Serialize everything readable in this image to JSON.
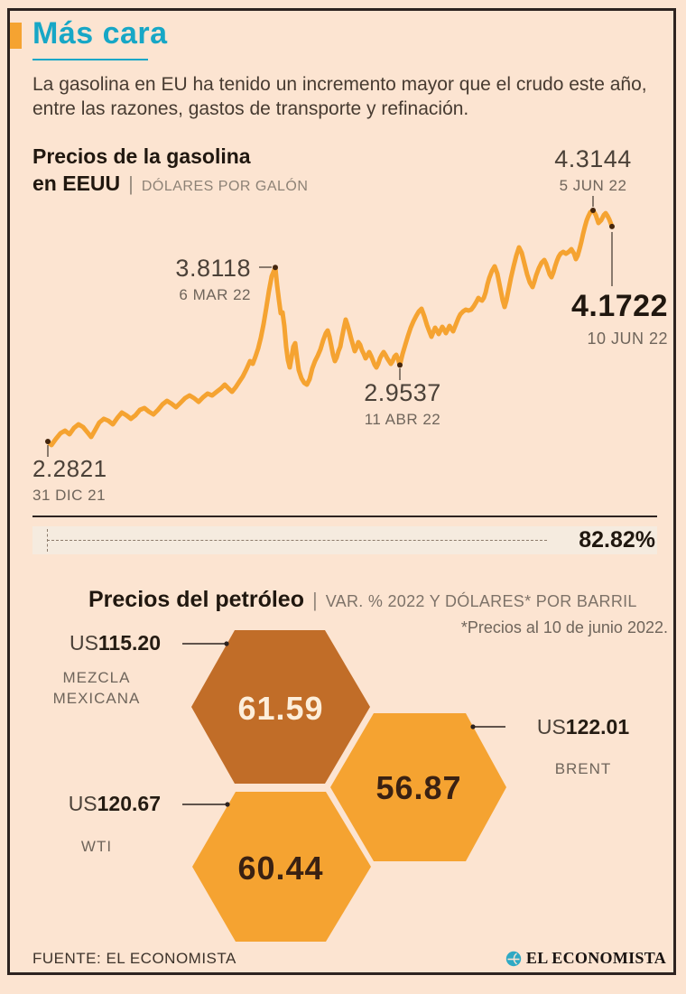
{
  "colors": {
    "background": "#fce4d1",
    "frame": "#2d2320",
    "accent_teal": "#17a7c6",
    "accent_orange": "#f5a331",
    "hex_dark": "#c16d28",
    "hex_light": "#f5a331",
    "text_dark": "#20170f",
    "text_gray": "#6f655b"
  },
  "header": {
    "title": "Más cara",
    "intro": "La gasolina en EU ha tenido un incremento mayor que el crudo este año, entre las razones, gastos de transporte y refinación."
  },
  "gasoline": {
    "title_line1": "Precios de la gasolina",
    "title_line2": "en EEUU",
    "sep": "|",
    "units": "DÓLARES POR GALÓN"
  },
  "chart_data": [
    {
      "type": "line",
      "title": "Precios de la gasolina en EEUU",
      "ylabel": "Dólares por galón",
      "ylim": [
        2.2821,
        4.3144
      ],
      "x_range": [
        "31 DIC 21",
        "10 JUN 22"
      ],
      "grid": false,
      "legend": "none",
      "line_color": "#f5a331",
      "total_change_pct": "82.82%",
      "key_points": [
        {
          "label": "2.2821",
          "date": "31 DIC 21",
          "t": 0.0,
          "value": 2.2821
        },
        {
          "label": "3.8118",
          "date": "6 MAR 22",
          "t": 0.4032,
          "value": 3.8118
        },
        {
          "label": "2.9537",
          "date": "11 ABR 22",
          "t": 0.624,
          "value": 2.9537
        },
        {
          "label": "4.3144",
          "date": "5 JUN 22",
          "t": 0.9664,
          "value": 4.3144
        },
        {
          "label": "4.1722",
          "date": "10 JUN 22",
          "t": 1.0,
          "value": 4.1722
        }
      ],
      "series": [
        {
          "name": "Precio gasolina EU (dólares por galón)",
          "points": [
            [
              0,
              2.2821
            ],
            [
              0.0064,
              2.25
            ],
            [
              0.0144,
              2.306
            ],
            [
              0.0224,
              2.354
            ],
            [
              0.0304,
              2.377
            ],
            [
              0.0384,
              2.346
            ],
            [
              0.0464,
              2.401
            ],
            [
              0.0544,
              2.433
            ],
            [
              0.0624,
              2.409
            ],
            [
              0.0704,
              2.361
            ],
            [
              0.0768,
              2.322
            ],
            [
              0.0832,
              2.377
            ],
            [
              0.0912,
              2.449
            ],
            [
              0.0992,
              2.481
            ],
            [
              0.1072,
              2.465
            ],
            [
              0.1152,
              2.433
            ],
            [
              0.1232,
              2.489
            ],
            [
              0.1312,
              2.536
            ],
            [
              0.1392,
              2.512
            ],
            [
              0.1472,
              2.481
            ],
            [
              0.1552,
              2.512
            ],
            [
              0.1632,
              2.56
            ],
            [
              0.1712,
              2.576
            ],
            [
              0.1792,
              2.544
            ],
            [
              0.1872,
              2.52
            ],
            [
              0.1952,
              2.56
            ],
            [
              0.2032,
              2.608
            ],
            [
              0.2112,
              2.639
            ],
            [
              0.2192,
              2.615
            ],
            [
              0.2272,
              2.584
            ],
            [
              0.2352,
              2.623
            ],
            [
              0.2432,
              2.663
            ],
            [
              0.2512,
              2.687
            ],
            [
              0.2592,
              2.663
            ],
            [
              0.2672,
              2.631
            ],
            [
              0.2752,
              2.671
            ],
            [
              0.2832,
              2.703
            ],
            [
              0.2912,
              2.687
            ],
            [
              0.2992,
              2.719
            ],
            [
              0.3072,
              2.75
            ],
            [
              0.3136,
              2.782
            ],
            [
              0.32,
              2.75
            ],
            [
              0.3264,
              2.719
            ],
            [
              0.3328,
              2.758
            ],
            [
              0.3392,
              2.806
            ],
            [
              0.3456,
              2.854
            ],
            [
              0.352,
              2.917
            ],
            [
              0.3584,
              2.989
            ],
            [
              0.3632,
              2.965
            ],
            [
              0.368,
              3.028
            ],
            [
              0.3728,
              3.1
            ],
            [
              0.3776,
              3.195
            ],
            [
              0.3824,
              3.314
            ],
            [
              0.3872,
              3.457
            ],
            [
              0.392,
              3.608
            ],
            [
              0.3968,
              3.735
            ],
            [
              0.4032,
              3.8118
            ],
            [
              0.4064,
              3.655
            ],
            [
              0.4096,
              3.528
            ],
            [
              0.4128,
              3.409
            ],
            [
              0.416,
              3.417
            ],
            [
              0.4192,
              3.298
            ],
            [
              0.4224,
              3.116
            ],
            [
              0.4256,
              2.997
            ],
            [
              0.4288,
              2.933
            ],
            [
              0.432,
              3.02
            ],
            [
              0.4352,
              3.116
            ],
            [
              0.4384,
              3.147
            ],
            [
              0.4416,
              3.02
            ],
            [
              0.4448,
              2.909
            ],
            [
              0.4496,
              2.838
            ],
            [
              0.4544,
              2.798
            ],
            [
              0.4592,
              2.782
            ],
            [
              0.464,
              2.83
            ],
            [
              0.4688,
              2.925
            ],
            [
              0.4736,
              2.989
            ],
            [
              0.4784,
              3.036
            ],
            [
              0.4832,
              3.092
            ],
            [
              0.488,
              3.171
            ],
            [
              0.4928,
              3.235
            ],
            [
              0.496,
              3.258
            ],
            [
              0.4992,
              3.203
            ],
            [
              0.5024,
              3.124
            ],
            [
              0.5056,
              3.044
            ],
            [
              0.5088,
              2.989
            ],
            [
              0.512,
              3.02
            ],
            [
              0.5152,
              3.076
            ],
            [
              0.5184,
              3.116
            ],
            [
              0.5216,
              3.203
            ],
            [
              0.5248,
              3.282
            ],
            [
              0.528,
              3.354
            ],
            [
              0.5312,
              3.306
            ],
            [
              0.5344,
              3.251
            ],
            [
              0.5376,
              3.187
            ],
            [
              0.5408,
              3.132
            ],
            [
              0.544,
              3.076
            ],
            [
              0.5472,
              3.108
            ],
            [
              0.5504,
              3.155
            ],
            [
              0.5536,
              3.132
            ],
            [
              0.5568,
              3.084
            ],
            [
              0.56,
              3.052
            ],
            [
              0.5632,
              3.013
            ],
            [
              0.5664,
              3.036
            ],
            [
              0.5696,
              3.068
            ],
            [
              0.5728,
              3.036
            ],
            [
              0.576,
              2.997
            ],
            [
              0.5792,
              2.957
            ],
            [
              0.5824,
              2.933
            ],
            [
              0.5856,
              2.965
            ],
            [
              0.5888,
              3.013
            ],
            [
              0.592,
              3.044
            ],
            [
              0.5952,
              3.068
            ],
            [
              0.5984,
              3.044
            ],
            [
              0.6016,
              3.013
            ],
            [
              0.6048,
              2.989
            ],
            [
              0.608,
              2.965
            ],
            [
              0.6112,
              2.989
            ],
            [
              0.6144,
              3.028
            ],
            [
              0.6176,
              3.044
            ],
            [
              0.6208,
              3.005
            ],
            [
              0.624,
              2.9537
            ],
            [
              0.6288,
              3.052
            ],
            [
              0.6336,
              3.132
            ],
            [
              0.6384,
              3.211
            ],
            [
              0.6432,
              3.282
            ],
            [
              0.648,
              3.338
            ],
            [
              0.6528,
              3.385
            ],
            [
              0.6576,
              3.425
            ],
            [
              0.6624,
              3.449
            ],
            [
              0.6672,
              3.385
            ],
            [
              0.672,
              3.306
            ],
            [
              0.6768,
              3.243
            ],
            [
              0.68,
              3.203
            ],
            [
              0.6832,
              3.243
            ],
            [
              0.6864,
              3.282
            ],
            [
              0.6896,
              3.258
            ],
            [
              0.6928,
              3.227
            ],
            [
              0.696,
              3.258
            ],
            [
              0.6992,
              3.29
            ],
            [
              0.7024,
              3.266
            ],
            [
              0.7056,
              3.235
            ],
            [
              0.7088,
              3.266
            ],
            [
              0.712,
              3.298
            ],
            [
              0.7152,
              3.274
            ],
            [
              0.7184,
              3.251
            ],
            [
              0.7216,
              3.29
            ],
            [
              0.7248,
              3.33
            ],
            [
              0.728,
              3.37
            ],
            [
              0.7312,
              3.401
            ],
            [
              0.736,
              3.425
            ],
            [
              0.7408,
              3.441
            ],
            [
              0.7456,
              3.433
            ],
            [
              0.7504,
              3.441
            ],
            [
              0.7552,
              3.473
            ],
            [
              0.76,
              3.513
            ],
            [
              0.7632,
              3.544
            ],
            [
              0.7664,
              3.529
            ],
            [
              0.7696,
              3.521
            ],
            [
              0.7728,
              3.544
            ],
            [
              0.776,
              3.592
            ],
            [
              0.7792,
              3.663
            ],
            [
              0.7824,
              3.719
            ],
            [
              0.7872,
              3.782
            ],
            [
              0.792,
              3.822
            ],
            [
              0.7968,
              3.758
            ],
            [
              0.8016,
              3.639
            ],
            [
              0.8064,
              3.52
            ],
            [
              0.8096,
              3.465
            ],
            [
              0.8128,
              3.52
            ],
            [
              0.816,
              3.6
            ],
            [
              0.8208,
              3.719
            ],
            [
              0.8256,
              3.822
            ],
            [
              0.8304,
              3.917
            ],
            [
              0.8352,
              3.989
            ],
            [
              0.84,
              3.941
            ],
            [
              0.8448,
              3.846
            ],
            [
              0.8496,
              3.751
            ],
            [
              0.8544,
              3.679
            ],
            [
              0.8592,
              3.64
            ],
            [
              0.8624,
              3.687
            ],
            [
              0.8656,
              3.743
            ],
            [
              0.8704,
              3.806
            ],
            [
              0.8752,
              3.854
            ],
            [
              0.88,
              3.878
            ],
            [
              0.8832,
              3.846
            ],
            [
              0.8864,
              3.798
            ],
            [
              0.8896,
              3.751
            ],
            [
              0.8928,
              3.727
            ],
            [
              0.896,
              3.767
            ],
            [
              0.8992,
              3.822
            ],
            [
              0.9024,
              3.87
            ],
            [
              0.9056,
              3.909
            ],
            [
              0.9088,
              3.933
            ],
            [
              0.9136,
              3.949
            ],
            [
              0.9184,
              3.933
            ],
            [
              0.9232,
              3.949
            ],
            [
              0.928,
              3.973
            ],
            [
              0.9328,
              3.933
            ],
            [
              0.936,
              3.886
            ],
            [
              0.9392,
              3.917
            ],
            [
              0.9424,
              3.973
            ],
            [
              0.9456,
              4.036
            ],
            [
              0.9488,
              4.108
            ],
            [
              0.952,
              4.171
            ],
            [
              0.9552,
              4.227
            ],
            [
              0.9584,
              4.266
            ],
            [
              0.9616,
              4.298
            ],
            [
              0.9664,
              4.3144
            ],
            [
              0.9712,
              4.274
            ],
            [
              0.976,
              4.203
            ],
            [
              0.9808,
              4.227
            ],
            [
              0.9856,
              4.274
            ],
            [
              0.9888,
              4.29
            ],
            [
              0.992,
              4.266
            ],
            [
              0.9952,
              4.235
            ],
            [
              1,
              4.1722
            ]
          ]
        }
      ]
    },
    {
      "type": "hex-badges",
      "title": "Precios del petróleo",
      "sep": "|",
      "units": "VAR. % 2022 Y DÓLARES* POR BARRIL",
      "footnote": "*Precios al 10 de junio 2022.",
      "items": [
        {
          "name": "MEZCLA MEXICANA",
          "price_prefix": "US",
          "price": "115.20",
          "variation_pct": "61.59",
          "hex_color": "#c16d28"
        },
        {
          "name": "BRENT",
          "price_prefix": "US",
          "price": "122.01",
          "variation_pct": "56.87",
          "hex_color": "#f5a331"
        },
        {
          "name": "WTI",
          "price_prefix": "US",
          "price": "120.67",
          "variation_pct": "60.44",
          "hex_color": "#f5a331"
        }
      ]
    }
  ],
  "footer": {
    "source": "FUENTE: EL ECONOMISTA",
    "brand": "EL ECONOMISTA"
  }
}
